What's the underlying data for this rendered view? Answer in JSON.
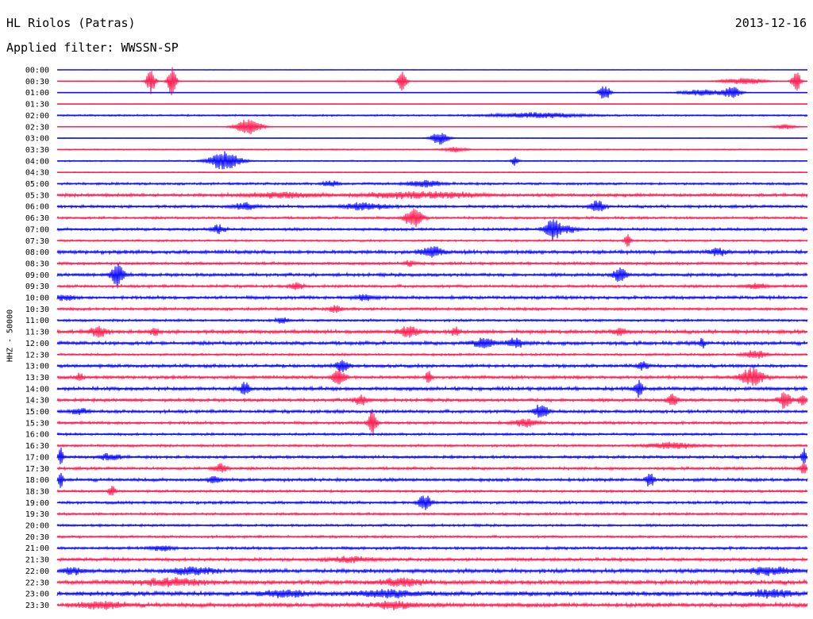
{
  "header": {
    "station": "HL Riolos (Patras)",
    "date": "2013-12-16",
    "filter": "Applied filter: WWSSN-SP"
  },
  "chart_data": {
    "type": "line",
    "title": "HL Riolos (Patras)",
    "subtitle": "Applied filter: WWSSN-SP",
    "date": "2013-12-16",
    "ylabel": "HHZ - 50000",
    "xlabel": "",
    "grid": false,
    "colors": {
      "even": "#1010ff",
      "odd": "#ff2255"
    },
    "series": [
      {
        "time": "00:00",
        "color": "blue",
        "noise": 0.2,
        "events": []
      },
      {
        "time": "00:30",
        "color": "red",
        "noise": 0.3,
        "events": [
          [
            0.125,
            16,
            0.004
          ],
          [
            0.153,
            18,
            0.004
          ],
          [
            0.46,
            12,
            0.004
          ],
          [
            0.915,
            4,
            0.02
          ],
          [
            0.985,
            15,
            0.004
          ]
        ]
      },
      {
        "time": "01:00",
        "color": "blue",
        "noise": 0.3,
        "events": [
          [
            0.73,
            10,
            0.005
          ],
          [
            0.86,
            4,
            0.02
          ],
          [
            0.9,
            7,
            0.008
          ]
        ]
      },
      {
        "time": "01:30",
        "color": "red",
        "noise": 0.2,
        "events": []
      },
      {
        "time": "02:00",
        "color": "blue",
        "noise": 0.8,
        "events": [
          [
            0.64,
            3,
            0.04
          ]
        ]
      },
      {
        "time": "02:30",
        "color": "red",
        "noise": 0.3,
        "events": [
          [
            0.255,
            10,
            0.012
          ],
          [
            0.97,
            3,
            0.01
          ]
        ]
      },
      {
        "time": "03:00",
        "color": "blue",
        "noise": 0.3,
        "events": [
          [
            0.51,
            8,
            0.008
          ]
        ]
      },
      {
        "time": "03:30",
        "color": "red",
        "noise": 0.6,
        "events": [
          [
            0.53,
            3,
            0.01
          ]
        ]
      },
      {
        "time": "04:00",
        "color": "blue",
        "noise": 0.6,
        "events": [
          [
            0.223,
            12,
            0.014
          ],
          [
            0.61,
            6,
            0.003
          ]
        ]
      },
      {
        "time": "04:30",
        "color": "red",
        "noise": 0.5,
        "events": []
      },
      {
        "time": "05:00",
        "color": "blue",
        "noise": 1.2,
        "events": [
          [
            0.365,
            3,
            0.008
          ],
          [
            0.49,
            4,
            0.015
          ]
        ]
      },
      {
        "time": "05:30",
        "color": "red",
        "noise": 1.6,
        "events": [
          [
            0.3,
            3,
            0.03
          ],
          [
            0.45,
            3,
            0.03
          ],
          [
            0.52,
            3,
            0.03
          ]
        ]
      },
      {
        "time": "06:00",
        "color": "blue",
        "noise": 1.4,
        "events": [
          [
            0.25,
            4,
            0.01
          ],
          [
            0.41,
            4,
            0.02
          ],
          [
            0.72,
            8,
            0.006
          ]
        ]
      },
      {
        "time": "06:30",
        "color": "red",
        "noise": 1.2,
        "events": [
          [
            0.475,
            12,
            0.008
          ]
        ]
      },
      {
        "time": "07:00",
        "color": "blue",
        "noise": 1.4,
        "events": [
          [
            0.215,
            5,
            0.006
          ],
          [
            0.66,
            14,
            0.007
          ],
          [
            0.68,
            4,
            0.01
          ]
        ]
      },
      {
        "time": "07:30",
        "color": "red",
        "noise": 1.0,
        "events": [
          [
            0.76,
            8,
            0.003
          ]
        ]
      },
      {
        "time": "08:00",
        "color": "blue",
        "noise": 1.8,
        "events": [
          [
            0.5,
            6,
            0.01
          ],
          [
            0.88,
            4,
            0.008
          ]
        ]
      },
      {
        "time": "08:30",
        "color": "red",
        "noise": 1.4,
        "events": [
          [
            0.47,
            3,
            0.006
          ]
        ]
      },
      {
        "time": "09:00",
        "color": "blue",
        "noise": 1.6,
        "events": [
          [
            0.08,
            14,
            0.006
          ],
          [
            0.75,
            10,
            0.006
          ]
        ]
      },
      {
        "time": "09:30",
        "color": "red",
        "noise": 1.4,
        "events": [
          [
            0.32,
            4,
            0.006
          ],
          [
            0.93,
            3,
            0.01
          ]
        ]
      },
      {
        "time": "10:00",
        "color": "blue",
        "noise": 1.6,
        "events": [
          [
            0.01,
            3,
            0.01
          ],
          [
            0.41,
            3,
            0.01
          ]
        ]
      },
      {
        "time": "10:30",
        "color": "red",
        "noise": 1.4,
        "events": [
          [
            0.37,
            4,
            0.006
          ]
        ]
      },
      {
        "time": "11:00",
        "color": "blue",
        "noise": 1.2,
        "events": [
          [
            0.3,
            4,
            0.005
          ]
        ]
      },
      {
        "time": "11:30",
        "color": "red",
        "noise": 1.8,
        "events": [
          [
            0.055,
            6,
            0.008
          ],
          [
            0.13,
            5,
            0.004
          ],
          [
            0.47,
            6,
            0.01
          ],
          [
            0.53,
            5,
            0.004
          ],
          [
            0.75,
            4,
            0.006
          ]
        ]
      },
      {
        "time": "12:00",
        "color": "blue",
        "noise": 1.8,
        "events": [
          [
            0.57,
            6,
            0.01
          ],
          [
            0.61,
            5,
            0.008
          ],
          [
            0.86,
            6,
            0.003
          ]
        ]
      },
      {
        "time": "12:30",
        "color": "red",
        "noise": 1.2,
        "events": [
          [
            0.93,
            5,
            0.01
          ]
        ]
      },
      {
        "time": "13:00",
        "color": "blue",
        "noise": 1.6,
        "events": [
          [
            0.38,
            7,
            0.006
          ],
          [
            0.78,
            5,
            0.005
          ]
        ]
      },
      {
        "time": "13:30",
        "color": "red",
        "noise": 1.6,
        "events": [
          [
            0.03,
            5,
            0.003
          ],
          [
            0.375,
            10,
            0.006
          ],
          [
            0.495,
            7,
            0.003
          ],
          [
            0.926,
            12,
            0.01
          ]
        ]
      },
      {
        "time": "14:00",
        "color": "blue",
        "noise": 1.8,
        "events": [
          [
            0.25,
            8,
            0.004
          ],
          [
            0.775,
            10,
            0.004
          ]
        ]
      },
      {
        "time": "14:30",
        "color": "red",
        "noise": 1.6,
        "events": [
          [
            0.405,
            5,
            0.008
          ],
          [
            0.82,
            8,
            0.005
          ],
          [
            0.97,
            10,
            0.006
          ],
          [
            0.993,
            7,
            0.004
          ]
        ]
      },
      {
        "time": "15:00",
        "color": "blue",
        "noise": 1.6,
        "events": [
          [
            0.03,
            3,
            0.008
          ],
          [
            0.645,
            10,
            0.006
          ]
        ]
      },
      {
        "time": "15:30",
        "color": "red",
        "noise": 1.4,
        "events": [
          [
            0.42,
            16,
            0.004
          ],
          [
            0.625,
            5,
            0.01
          ]
        ]
      },
      {
        "time": "16:00",
        "color": "blue",
        "noise": 1.2,
        "events": []
      },
      {
        "time": "16:30",
        "color": "red",
        "noise": 1.2,
        "events": [
          [
            0.82,
            4,
            0.02
          ]
        ]
      },
      {
        "time": "17:00",
        "color": "blue",
        "noise": 1.4,
        "events": [
          [
            0.07,
            4,
            0.01
          ],
          [
            0.005,
            12,
            0.002
          ],
          [
            0.995,
            12,
            0.002
          ]
        ]
      },
      {
        "time": "17:30",
        "color": "red",
        "noise": 1.4,
        "events": [
          [
            0.218,
            6,
            0.006
          ],
          [
            0.995,
            10,
            0.003
          ]
        ]
      },
      {
        "time": "18:00",
        "color": "blue",
        "noise": 1.6,
        "events": [
          [
            0.005,
            12,
            0.002
          ],
          [
            0.21,
            4,
            0.006
          ],
          [
            0.79,
            9,
            0.004
          ]
        ]
      },
      {
        "time": "18:30",
        "color": "red",
        "noise": 1.2,
        "events": [
          [
            0.073,
            7,
            0.003
          ]
        ]
      },
      {
        "time": "19:00",
        "color": "blue",
        "noise": 1.4,
        "events": [
          [
            0.49,
            10,
            0.006
          ]
        ]
      },
      {
        "time": "19:30",
        "color": "red",
        "noise": 1.2,
        "events": []
      },
      {
        "time": "20:00",
        "color": "blue",
        "noise": 1.2,
        "events": []
      },
      {
        "time": "20:30",
        "color": "red",
        "noise": 1.2,
        "events": []
      },
      {
        "time": "21:00",
        "color": "blue",
        "noise": 1.4,
        "events": [
          [
            0.14,
            3,
            0.01
          ]
        ]
      },
      {
        "time": "21:30",
        "color": "red",
        "noise": 1.6,
        "events": [
          [
            0.39,
            3,
            0.02
          ]
        ]
      },
      {
        "time": "22:00",
        "color": "blue",
        "noise": 2.0,
        "events": [
          [
            0.02,
            4,
            0.01
          ],
          [
            0.18,
            4,
            0.02
          ],
          [
            0.95,
            4,
            0.02
          ]
        ]
      },
      {
        "time": "22:30",
        "color": "red",
        "noise": 2.2,
        "events": [
          [
            0.15,
            4,
            0.03
          ],
          [
            0.46,
            4,
            0.02
          ]
        ]
      },
      {
        "time": "23:00",
        "color": "blue",
        "noise": 2.2,
        "events": [
          [
            0.3,
            4,
            0.02
          ],
          [
            0.44,
            4,
            0.03
          ],
          [
            0.95,
            4,
            0.02
          ]
        ]
      },
      {
        "time": "23:30",
        "color": "red",
        "noise": 2.2,
        "events": [
          [
            0.06,
            4,
            0.02
          ],
          [
            0.45,
            4,
            0.02
          ]
        ]
      }
    ]
  }
}
